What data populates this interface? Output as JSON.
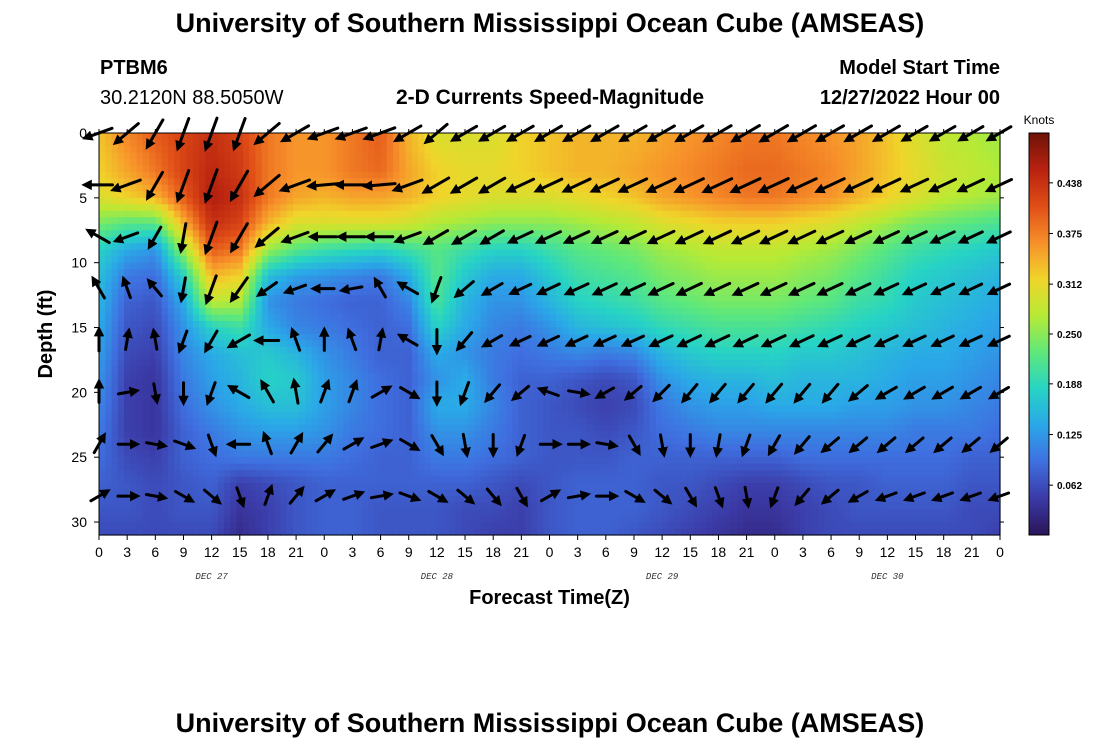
{
  "header": {
    "title_top": "University of Southern Mississippi Ocean Cube (AMSEAS)",
    "station": "PTBM6",
    "coords": "30.2120N  88.5050W",
    "chart_title": "2-D Currents Speed-Magnitude",
    "model_start_label": "Model Start Time",
    "model_start_value": "12/27/2022 Hour 00",
    "title_bottom": "University of Southern Mississippi Ocean Cube (AMSEAS)"
  },
  "chart_data": {
    "type": "heatmap",
    "title": "2-D Currents Speed-Magnitude",
    "xlabel": "Forecast Time(Z)",
    "ylabel": "Depth (ft)",
    "x_ticks": [
      "0",
      "3",
      "6",
      "9",
      "12",
      "15",
      "18",
      "21",
      "0",
      "3",
      "6",
      "9",
      "12",
      "15",
      "18",
      "21",
      "0",
      "3",
      "6",
      "9",
      "12",
      "15",
      "18",
      "21",
      "0",
      "3",
      "6",
      "9",
      "12",
      "15",
      "18",
      "21",
      "0"
    ],
    "x_range_hours": [
      0,
      96
    ],
    "day_labels": [
      {
        "label": "DEC 27",
        "hour": 12
      },
      {
        "label": "DEC 28",
        "hour": 36
      },
      {
        "label": "DEC 29",
        "hour": 60
      },
      {
        "label": "DEC 30",
        "hour": 84
      }
    ],
    "y_ticks": [
      "0",
      "5",
      "10",
      "15",
      "20",
      "25",
      "30"
    ],
    "y_range_ft": [
      0,
      31
    ],
    "y_inverted": true,
    "colorbar": {
      "units": "Knots",
      "range": [
        0.0,
        0.5
      ],
      "ticks": [
        "0.062",
        "0.125",
        "0.188",
        "0.250",
        "0.312",
        "0.375",
        "0.438"
      ],
      "colors": [
        "#2a1458",
        "#3b3aa6",
        "#3f6fe0",
        "#2aa7e8",
        "#27d4c4",
        "#5fe87a",
        "#b6ea35",
        "#f0d52a",
        "#f7902a",
        "#e04e17",
        "#b82210",
        "#6e1208"
      ]
    },
    "speed_field": {
      "times_hours": [
        0,
        3,
        6,
        9,
        12,
        15,
        18,
        21,
        24,
        27,
        30,
        33,
        36,
        39,
        42,
        45,
        48,
        51,
        54,
        57,
        60,
        63,
        66,
        69,
        72,
        75,
        78,
        81,
        84,
        87,
        90,
        93,
        96
      ],
      "depths_ft": [
        0,
        3,
        5,
        7,
        9,
        11,
        13,
        15,
        17,
        19,
        21,
        23,
        25,
        27,
        29,
        31
      ],
      "values": [
        [
          0.33,
          0.37,
          0.4,
          0.42,
          0.44,
          0.42,
          0.38,
          0.36,
          0.36,
          0.38,
          0.4,
          0.34,
          0.3,
          0.3,
          0.3,
          0.32,
          0.33,
          0.34,
          0.34,
          0.34,
          0.35,
          0.36,
          0.37,
          0.38,
          0.38,
          0.37,
          0.36,
          0.35,
          0.33,
          0.3,
          0.28,
          0.27,
          0.26
        ],
        [
          0.32,
          0.35,
          0.38,
          0.42,
          0.45,
          0.43,
          0.38,
          0.36,
          0.36,
          0.38,
          0.39,
          0.35,
          0.32,
          0.31,
          0.31,
          0.32,
          0.33,
          0.34,
          0.34,
          0.35,
          0.36,
          0.37,
          0.38,
          0.39,
          0.39,
          0.38,
          0.37,
          0.35,
          0.33,
          0.31,
          0.29,
          0.28,
          0.27
        ],
        [
          0.3,
          0.32,
          0.34,
          0.4,
          0.46,
          0.44,
          0.38,
          0.35,
          0.34,
          0.35,
          0.35,
          0.34,
          0.32,
          0.31,
          0.3,
          0.3,
          0.3,
          0.31,
          0.32,
          0.33,
          0.35,
          0.36,
          0.37,
          0.38,
          0.38,
          0.37,
          0.36,
          0.34,
          0.32,
          0.3,
          0.28,
          0.27,
          0.26
        ],
        [
          0.24,
          0.22,
          0.22,
          0.34,
          0.44,
          0.42,
          0.34,
          0.3,
          0.3,
          0.3,
          0.3,
          0.29,
          0.27,
          0.26,
          0.25,
          0.25,
          0.25,
          0.26,
          0.27,
          0.28,
          0.3,
          0.31,
          0.32,
          0.32,
          0.32,
          0.31,
          0.3,
          0.28,
          0.26,
          0.24,
          0.23,
          0.22,
          0.21
        ],
        [
          0.18,
          0.14,
          0.12,
          0.26,
          0.4,
          0.38,
          0.26,
          0.22,
          0.2,
          0.19,
          0.18,
          0.2,
          0.22,
          0.2,
          0.18,
          0.18,
          0.2,
          0.22,
          0.23,
          0.24,
          0.26,
          0.27,
          0.28,
          0.28,
          0.28,
          0.27,
          0.26,
          0.24,
          0.22,
          0.2,
          0.19,
          0.18,
          0.17
        ],
        [
          0.16,
          0.1,
          0.09,
          0.18,
          0.34,
          0.32,
          0.16,
          0.13,
          0.12,
          0.11,
          0.1,
          0.14,
          0.22,
          0.17,
          0.14,
          0.14,
          0.17,
          0.2,
          0.21,
          0.22,
          0.24,
          0.25,
          0.26,
          0.26,
          0.26,
          0.25,
          0.24,
          0.22,
          0.2,
          0.18,
          0.17,
          0.16,
          0.15
        ],
        [
          0.15,
          0.08,
          0.07,
          0.14,
          0.28,
          0.27,
          0.12,
          0.1,
          0.09,
          0.08,
          0.08,
          0.11,
          0.21,
          0.15,
          0.12,
          0.12,
          0.15,
          0.18,
          0.19,
          0.2,
          0.22,
          0.23,
          0.24,
          0.24,
          0.24,
          0.23,
          0.22,
          0.2,
          0.19,
          0.17,
          0.16,
          0.15,
          0.14
        ],
        [
          0.14,
          0.07,
          0.06,
          0.12,
          0.18,
          0.2,
          0.14,
          0.11,
          0.1,
          0.09,
          0.08,
          0.09,
          0.18,
          0.14,
          0.11,
          0.1,
          0.12,
          0.15,
          0.16,
          0.17,
          0.19,
          0.2,
          0.21,
          0.21,
          0.21,
          0.2,
          0.19,
          0.18,
          0.17,
          0.16,
          0.15,
          0.14,
          0.13
        ],
        [
          0.13,
          0.06,
          0.05,
          0.11,
          0.14,
          0.16,
          0.17,
          0.15,
          0.12,
          0.1,
          0.08,
          0.08,
          0.14,
          0.12,
          0.1,
          0.09,
          0.1,
          0.11,
          0.1,
          0.11,
          0.15,
          0.17,
          0.18,
          0.18,
          0.18,
          0.17,
          0.17,
          0.16,
          0.15,
          0.14,
          0.14,
          0.13,
          0.12
        ],
        [
          0.12,
          0.05,
          0.04,
          0.1,
          0.13,
          0.15,
          0.18,
          0.17,
          0.13,
          0.11,
          0.09,
          0.08,
          0.12,
          0.14,
          0.1,
          0.08,
          0.08,
          0.07,
          0.06,
          0.07,
          0.12,
          0.14,
          0.15,
          0.15,
          0.16,
          0.15,
          0.15,
          0.15,
          0.14,
          0.13,
          0.13,
          0.12,
          0.11
        ],
        [
          0.11,
          0.05,
          0.04,
          0.09,
          0.12,
          0.14,
          0.16,
          0.16,
          0.13,
          0.11,
          0.09,
          0.08,
          0.14,
          0.14,
          0.11,
          0.08,
          0.07,
          0.06,
          0.05,
          0.06,
          0.1,
          0.12,
          0.13,
          0.13,
          0.14,
          0.14,
          0.14,
          0.13,
          0.13,
          0.12,
          0.12,
          0.11,
          0.1
        ],
        [
          0.1,
          0.05,
          0.04,
          0.08,
          0.1,
          0.12,
          0.13,
          0.13,
          0.12,
          0.1,
          0.09,
          0.08,
          0.12,
          0.12,
          0.1,
          0.08,
          0.07,
          0.07,
          0.06,
          0.07,
          0.09,
          0.1,
          0.11,
          0.11,
          0.11,
          0.11,
          0.11,
          0.11,
          0.11,
          0.1,
          0.1,
          0.1,
          0.09
        ],
        [
          0.09,
          0.06,
          0.05,
          0.08,
          0.09,
          0.1,
          0.1,
          0.1,
          0.1,
          0.09,
          0.08,
          0.08,
          0.1,
          0.1,
          0.09,
          0.08,
          0.07,
          0.07,
          0.07,
          0.08,
          0.08,
          0.08,
          0.08,
          0.08,
          0.08,
          0.09,
          0.09,
          0.09,
          0.09,
          0.09,
          0.09,
          0.08,
          0.08
        ],
        [
          0.08,
          0.07,
          0.06,
          0.07,
          0.08,
          0.05,
          0.06,
          0.07,
          0.08,
          0.08,
          0.08,
          0.08,
          0.08,
          0.08,
          0.07,
          0.06,
          0.07,
          0.08,
          0.08,
          0.08,
          0.07,
          0.07,
          0.06,
          0.05,
          0.05,
          0.06,
          0.07,
          0.07,
          0.08,
          0.08,
          0.08,
          0.07,
          0.07
        ],
        [
          0.07,
          0.07,
          0.06,
          0.07,
          0.07,
          0.04,
          0.05,
          0.07,
          0.08,
          0.08,
          0.07,
          0.07,
          0.07,
          0.06,
          0.06,
          0.05,
          0.07,
          0.08,
          0.08,
          0.08,
          0.07,
          0.06,
          0.05,
          0.04,
          0.04,
          0.05,
          0.06,
          0.07,
          0.07,
          0.07,
          0.07,
          0.06,
          0.06
        ],
        [
          0.06,
          0.06,
          0.06,
          0.06,
          0.06,
          0.03,
          0.05,
          0.07,
          0.08,
          0.08,
          0.07,
          0.07,
          0.07,
          0.06,
          0.05,
          0.05,
          0.07,
          0.08,
          0.08,
          0.07,
          0.06,
          0.05,
          0.04,
          0.03,
          0.03,
          0.05,
          0.06,
          0.06,
          0.06,
          0.06,
          0.06,
          0.06,
          0.05
        ]
      ]
    },
    "vectors": {
      "times_hours": [
        0,
        3,
        6,
        9,
        12,
        15,
        18,
        21,
        24,
        27,
        30,
        33,
        36,
        39,
        42,
        45,
        48,
        51,
        54,
        57,
        60,
        63,
        66,
        69,
        72,
        75,
        78,
        81,
        84,
        87,
        90,
        93,
        96
      ],
      "depths_ft": [
        0,
        4,
        8,
        12,
        16,
        20,
        24,
        28
      ],
      "direction_deg": [
        [
          250,
          230,
          210,
          200,
          200,
          200,
          230,
          240,
          250,
          250,
          250,
          240,
          230,
          240,
          240,
          240,
          240,
          240,
          240,
          240,
          240,
          240,
          240,
          240,
          240,
          240,
          240,
          240,
          240,
          240,
          240,
          240,
          240
        ],
        [
          270,
          250,
          210,
          200,
          200,
          210,
          230,
          250,
          265,
          270,
          265,
          250,
          240,
          240,
          240,
          245,
          245,
          245,
          245,
          245,
          245,
          245,
          245,
          245,
          245,
          245,
          245,
          245,
          245,
          245,
          245,
          245,
          245
        ],
        [
          300,
          250,
          210,
          190,
          200,
          210,
          230,
          250,
          270,
          270,
          270,
          250,
          240,
          240,
          240,
          245,
          245,
          245,
          245,
          245,
          245,
          245,
          245,
          245,
          245,
          245,
          245,
          245,
          245,
          245,
          245,
          245,
          245
        ],
        [
          330,
          340,
          320,
          190,
          200,
          215,
          235,
          250,
          270,
          260,
          330,
          300,
          200,
          230,
          240,
          245,
          245,
          245,
          245,
          245,
          245,
          245,
          245,
          245,
          245,
          245,
          245,
          245,
          245,
          245,
          245,
          245,
          245
        ],
        [
          0,
          10,
          350,
          200,
          210,
          240,
          270,
          340,
          360,
          340,
          10,
          300,
          180,
          220,
          240,
          245,
          245,
          245,
          245,
          245,
          245,
          245,
          245,
          245,
          245,
          245,
          245,
          245,
          245,
          245,
          245,
          245,
          245
        ],
        [
          0,
          80,
          170,
          180,
          200,
          300,
          330,
          350,
          20,
          20,
          60,
          120,
          180,
          200,
          220,
          230,
          290,
          100,
          240,
          230,
          225,
          220,
          220,
          220,
          220,
          220,
          220,
          230,
          240,
          240,
          240,
          240,
          240
        ],
        [
          30,
          90,
          100,
          110,
          160,
          270,
          340,
          30,
          40,
          60,
          70,
          120,
          150,
          170,
          180,
          200,
          90,
          90,
          100,
          150,
          170,
          180,
          190,
          200,
          210,
          220,
          230,
          230,
          230,
          230,
          230,
          230,
          230
        ],
        [
          60,
          90,
          100,
          120,
          130,
          160,
          20,
          40,
          60,
          70,
          80,
          110,
          120,
          130,
          140,
          150,
          60,
          80,
          90,
          120,
          130,
          150,
          160,
          170,
          200,
          220,
          230,
          240,
          250,
          250,
          250,
          250,
          250
        ]
      ]
    }
  }
}
